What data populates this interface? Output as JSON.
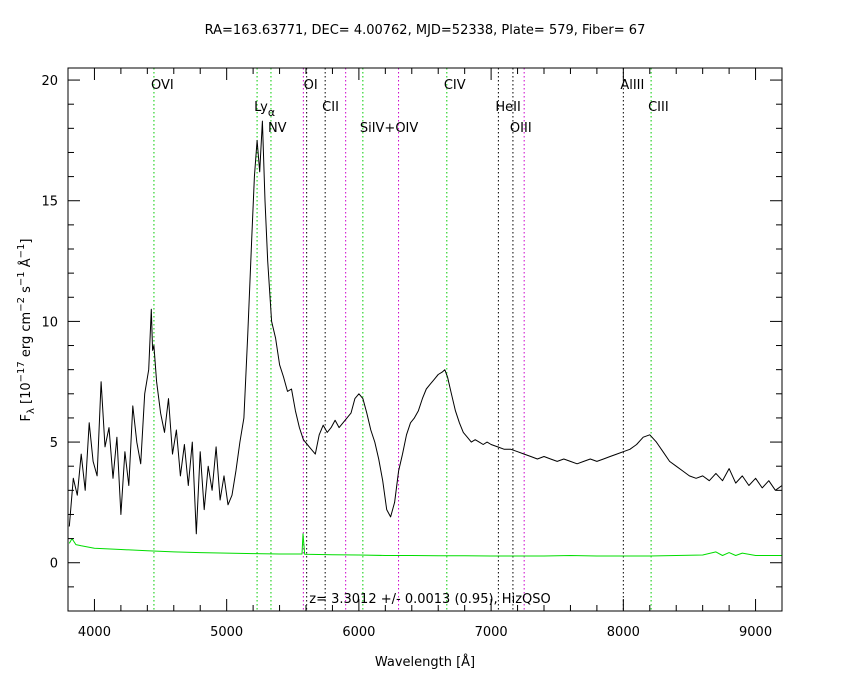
{
  "chart_data": {
    "type": "line",
    "title": "RA=163.63771, DEC= 4.00762, MJD=52338, Plate= 579, Fiber= 67",
    "xlabel": "Wavelength [Å]",
    "ylabel_main": "F",
    "ylabel_sub": "λ",
    "ylabel_rest": " [10",
    "ylabel_exp1": "−17",
    "ylabel_mid1": " erg cm",
    "ylabel_exp2": "−2",
    "ylabel_mid2": " s",
    "ylabel_exp3": "−1",
    "ylabel_mid3": " Å",
    "ylabel_exp4": "−1",
    "ylabel_end": "]",
    "xlim": [
      3800,
      9200
    ],
    "ylim": [
      -2,
      20.5
    ],
    "x_ticks": [
      4000,
      5000,
      6000,
      7000,
      8000,
      9000
    ],
    "y_ticks": [
      0,
      5,
      10,
      15,
      20
    ],
    "annotation": "z= 3.3012 +/- 0.0013 (0.95), HizQSO",
    "lines": [
      {
        "label": "OVI",
        "x": 4450,
        "color": "#00cc00",
        "row": 1
      },
      {
        "label": "Ly",
        "sub": "α",
        "x": 5230,
        "color": "#00cc00",
        "row": 2
      },
      {
        "label": "NV",
        "x": 5335,
        "color": "#00cc00",
        "row": 3
      },
      {
        "label": "OI",
        "x": 5605,
        "color": "#000000",
        "row": 1
      },
      {
        "label": "",
        "x": 5580,
        "color": "#cc00cc",
        "row": 0
      },
      {
        "label": "CII",
        "x": 5745,
        "color": "#000000",
        "row": 2
      },
      {
        "label": "",
        "x": 5900,
        "color": "#cc00cc",
        "row": 0
      },
      {
        "label": "SiIV+OIV",
        "x": 6030,
        "color": "#00cc00",
        "row": 3
      },
      {
        "label": "",
        "x": 6300,
        "color": "#cc00cc",
        "row": 0
      },
      {
        "label": "CIV",
        "x": 6665,
        "color": "#00cc00",
        "row": 1
      },
      {
        "label": "HeII",
        "x": 7055,
        "color": "#000000",
        "row": 2
      },
      {
        "label": "OIII",
        "x": 7165,
        "color": "#000000",
        "row": 3
      },
      {
        "label": "",
        "x": 7250,
        "color": "#cc00cc",
        "row": 0
      },
      {
        "label": "AlIII",
        "x": 8000,
        "color": "#000000",
        "row": 1
      },
      {
        "label": "CIII",
        "x": 8210,
        "color": "#00cc00",
        "row": 2
      }
    ],
    "series": [
      {
        "color": "#000000",
        "x": [
          3810,
          3840,
          3870,
          3900,
          3930,
          3960,
          3990,
          4020,
          4050,
          4080,
          4110,
          4140,
          4170,
          4200,
          4230,
          4260,
          4290,
          4320,
          4350,
          4380,
          4410,
          4430,
          4440,
          4450,
          4470,
          4500,
          4530,
          4560,
          4590,
          4620,
          4650,
          4680,
          4710,
          4740,
          4770,
          4800,
          4830,
          4860,
          4890,
          4920,
          4950,
          4980,
          5010,
          5040,
          5070,
          5100,
          5130,
          5160,
          5190,
          5210,
          5230,
          5250,
          5270,
          5290,
          5310,
          5340,
          5370,
          5400,
          5430,
          5460,
          5490,
          5520,
          5550,
          5580,
          5610,
          5640,
          5670,
          5700,
          5730,
          5760,
          5790,
          5820,
          5850,
          5880,
          5910,
          5940,
          5970,
          6000,
          6030,
          6060,
          6090,
          6120,
          6150,
          6180,
          6210,
          6240,
          6270,
          6300,
          6330,
          6360,
          6390,
          6420,
          6450,
          6480,
          6510,
          6540,
          6570,
          6600,
          6630,
          6650,
          6670,
          6700,
          6730,
          6760,
          6790,
          6820,
          6850,
          6880,
          6910,
          6940,
          6970,
          7000,
          7050,
          7100,
          7150,
          7200,
          7250,
          7300,
          7350,
          7400,
          7450,
          7500,
          7550,
          7600,
          7650,
          7700,
          7750,
          7800,
          7850,
          7900,
          7950,
          8000,
          8050,
          8100,
          8150,
          8200,
          8250,
          8300,
          8350,
          8400,
          8450,
          8500,
          8550,
          8600,
          8650,
          8700,
          8750,
          8800,
          8850,
          8900,
          8950,
          9000,
          9050,
          9100,
          9150,
          9200
        ],
        "y": [
          1.5,
          3.5,
          2.8,
          4.5,
          3.0,
          5.8,
          4.2,
          3.6,
          7.5,
          4.8,
          5.6,
          3.5,
          5.2,
          2.0,
          4.6,
          3.2,
          6.5,
          5.0,
          4.1,
          7.0,
          8.0,
          10.5,
          8.8,
          9.0,
          7.5,
          6.2,
          5.4,
          6.8,
          4.5,
          5.5,
          3.6,
          4.9,
          3.2,
          5.0,
          1.2,
          4.6,
          2.2,
          4.0,
          3.0,
          4.8,
          2.6,
          3.6,
          2.4,
          2.8,
          3.8,
          5.0,
          6.0,
          9.5,
          13.5,
          16.0,
          17.5,
          16.2,
          18.3,
          15.0,
          12.5,
          10.0,
          9.3,
          8.2,
          7.7,
          7.1,
          7.2,
          6.3,
          5.6,
          5.1,
          4.9,
          4.7,
          4.5,
          5.3,
          5.7,
          5.4,
          5.6,
          5.9,
          5.6,
          5.8,
          6.0,
          6.2,
          6.8,
          7.0,
          6.8,
          6.2,
          5.5,
          5.0,
          4.3,
          3.4,
          2.2,
          1.9,
          2.5,
          3.8,
          4.5,
          5.3,
          5.8,
          6.0,
          6.3,
          6.8,
          7.2,
          7.4,
          7.6,
          7.8,
          7.9,
          8.0,
          7.7,
          7.0,
          6.3,
          5.8,
          5.4,
          5.2,
          5.0,
          5.1,
          5.0,
          4.9,
          5.0,
          4.9,
          4.8,
          4.7,
          4.7,
          4.6,
          4.5,
          4.4,
          4.3,
          4.4,
          4.3,
          4.2,
          4.3,
          4.2,
          4.1,
          4.2,
          4.3,
          4.2,
          4.3,
          4.4,
          4.5,
          4.6,
          4.7,
          4.9,
          5.2,
          5.3,
          5.0,
          4.6,
          4.2,
          4.0,
          3.8,
          3.6,
          3.5,
          3.6,
          3.4,
          3.7,
          3.4,
          3.9,
          3.3,
          3.6,
          3.2,
          3.5,
          3.1,
          3.4,
          3.0,
          3.2
        ]
      },
      {
        "color": "#00dd00",
        "x": [
          3810,
          3830,
          3860,
          3900,
          4000,
          4200,
          4400,
          4600,
          4800,
          5000,
          5200,
          5400,
          5570,
          5577,
          5590,
          5800,
          6000,
          6200,
          6400,
          6600,
          6800,
          7000,
          7200,
          7400,
          7600,
          7800,
          8000,
          8200,
          8400,
          8600,
          8700,
          8750,
          8800,
          8850,
          8900,
          9000,
          9100,
          9200
        ],
        "y": [
          0.8,
          1.0,
          0.75,
          0.7,
          0.6,
          0.55,
          0.5,
          0.45,
          0.42,
          0.4,
          0.38,
          0.36,
          0.36,
          1.2,
          0.35,
          0.33,
          0.32,
          0.3,
          0.3,
          0.29,
          0.29,
          0.28,
          0.28,
          0.28,
          0.3,
          0.28,
          0.28,
          0.28,
          0.3,
          0.32,
          0.45,
          0.3,
          0.42,
          0.3,
          0.4,
          0.3,
          0.3,
          0.3
        ]
      }
    ]
  }
}
